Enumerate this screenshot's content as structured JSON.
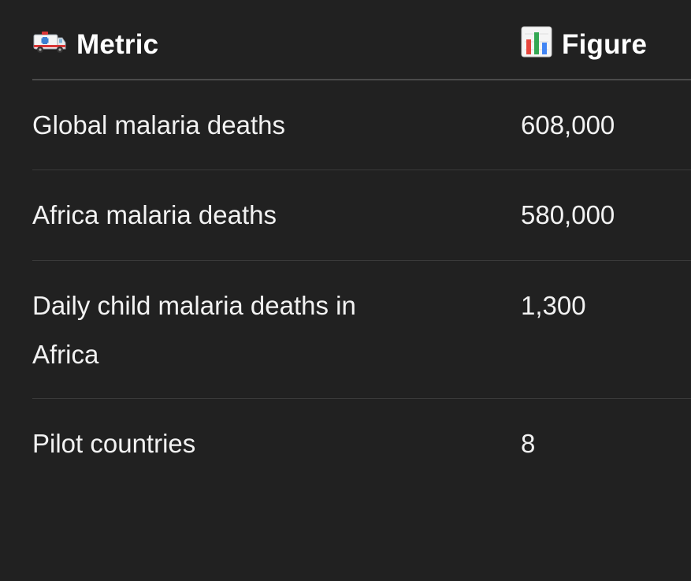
{
  "table": {
    "headers": {
      "metric": {
        "icon": "ambulance-icon",
        "label": "Metric"
      },
      "figure": {
        "icon": "bar-chart-icon",
        "label": "Figure"
      }
    },
    "rows": [
      {
        "metric": "Global malaria deaths",
        "figure": "608,000"
      },
      {
        "metric": "Africa malaria deaths",
        "figure": "580,000"
      },
      {
        "metric": "Daily child malaria deaths in Africa",
        "figure": "1,300"
      },
      {
        "metric": "Pilot countries",
        "figure": "8"
      }
    ]
  },
  "colors": {
    "background": "#212121",
    "text": "#f2f2f2",
    "divider": "#3a3a3a"
  }
}
